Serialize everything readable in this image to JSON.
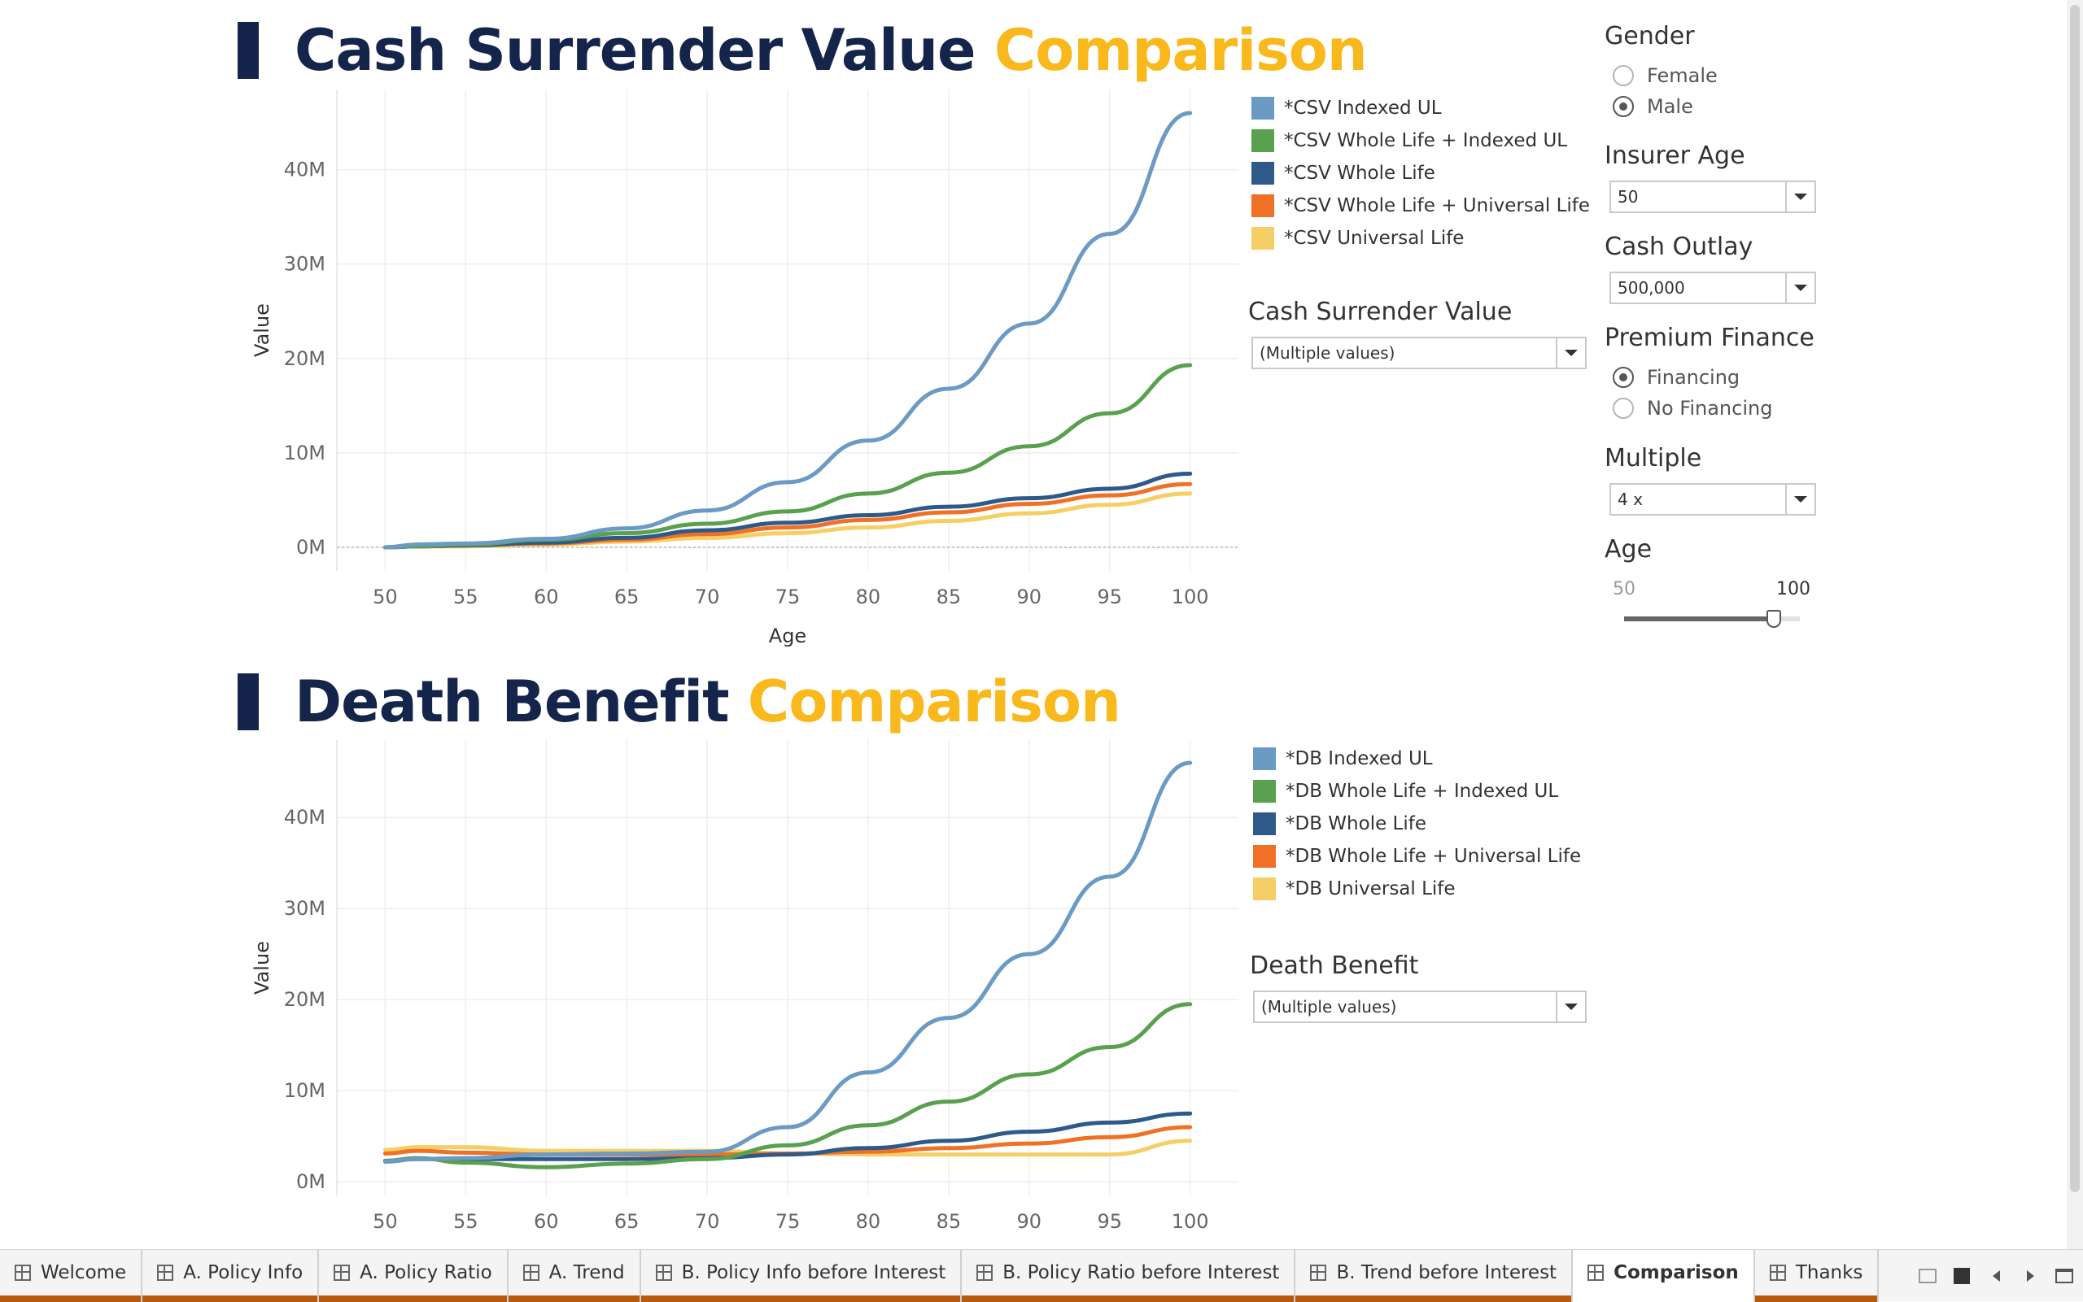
{
  "csv_title": {
    "main": "Cash Surrender Value",
    "accent": "Comparison"
  },
  "db_title": {
    "main": "Death Benefit",
    "accent": "Comparison"
  },
  "colors": {
    "title": "#14244a",
    "accent": "#f9b81b",
    "indexed_ul": "#6b9ac4",
    "whole_life_indexed_ul": "#59a14f",
    "whole_life": "#2e5a8a",
    "whole_life_universal_life": "#f07126",
    "universal_life": "#f5cf65",
    "tab_underline": "#b8590c"
  },
  "csv_legend": [
    {
      "label": "*CSV Indexed UL",
      "color": "#6b9ac4"
    },
    {
      "label": "*CSV Whole Life + Indexed UL",
      "color": "#59a14f"
    },
    {
      "label": "*CSV Whole Life",
      "color": "#2e5a8a"
    },
    {
      "label": "*CSV Whole Life + Universal Life",
      "color": "#f07126"
    },
    {
      "label": "*CSV Universal Life",
      "color": "#f5cf65"
    }
  ],
  "db_legend": [
    {
      "label": "*DB Indexed UL",
      "color": "#6b9ac4"
    },
    {
      "label": "*DB Whole Life + Indexed UL",
      "color": "#59a14f"
    },
    {
      "label": "*DB Whole Life",
      "color": "#2e5a8a"
    },
    {
      "label": "*DB Whole Life + Universal Life",
      "color": "#f07126"
    },
    {
      "label": "*DB Universal Life",
      "color": "#f5cf65"
    }
  ],
  "csv_filter": {
    "title": "Cash Surrender Value",
    "value": "(Multiple values)"
  },
  "db_filter": {
    "title": "Death Benefit",
    "value": "(Multiple values)"
  },
  "gender": {
    "title": "Gender",
    "options": [
      "Female",
      "Male"
    ],
    "selected": "Male"
  },
  "insurer_age": {
    "title": "Insurer Age",
    "value": "50"
  },
  "cash_outlay": {
    "title": "Cash Outlay",
    "value": "500,000"
  },
  "premium_finance": {
    "title": "Premium Finance",
    "options": [
      "Financing",
      "No Financing"
    ],
    "selected": "Financing"
  },
  "multiple": {
    "title": "Multiple",
    "value": "4 x"
  },
  "age_slider": {
    "title": "Age",
    "min_label": "50",
    "max_label": "100",
    "min": 50,
    "max": 100,
    "value": 100
  },
  "tabs": [
    {
      "label": "Welcome",
      "active": false
    },
    {
      "label": "A. Policy Info",
      "active": false
    },
    {
      "label": "A. Policy Ratio",
      "active": false
    },
    {
      "label": "A. Trend",
      "active": false
    },
    {
      "label": "B. Policy Info before Interest",
      "active": false
    },
    {
      "label": "B. Policy Ratio before Interest",
      "active": false
    },
    {
      "label": "B. Trend before Interest",
      "active": false
    },
    {
      "label": "Comparison",
      "active": true
    },
    {
      "label": "Thanks",
      "active": false
    }
  ],
  "chart_data": [
    {
      "type": "line",
      "title": "Cash Surrender Value Comparison",
      "xlabel": "Age",
      "ylabel": "Value",
      "xlim": [
        47,
        103
      ],
      "ylim": [
        -2.5,
        48.5
      ],
      "x_ticks": [
        50,
        55,
        60,
        65,
        70,
        75,
        80,
        85,
        90,
        95,
        100
      ],
      "y_ticks": [
        0,
        10,
        20,
        30,
        40
      ],
      "y_tick_labels": [
        "0M",
        "10M",
        "20M",
        "30M",
        "40M"
      ],
      "zero_line": true,
      "x": [
        50,
        52,
        55,
        60,
        65,
        70,
        75,
        80,
        85,
        90,
        95,
        100
      ],
      "series": [
        {
          "name": "*CSV Indexed UL",
          "color": "#6b9ac4",
          "values": [
            0,
            0.3,
            0.4,
            0.9,
            2.0,
            3.9,
            6.9,
            11.3,
            16.8,
            23.7,
            33.2,
            46.0
          ]
        },
        {
          "name": "*CSV Whole Life + Indexed UL",
          "color": "#59a14f",
          "values": [
            0,
            0.1,
            0.3,
            0.8,
            1.5,
            2.5,
            3.8,
            5.7,
            7.9,
            10.7,
            14.2,
            19.3
          ]
        },
        {
          "name": "*CSV Whole Life",
          "color": "#2e5a8a",
          "values": [
            0,
            0.1,
            0.2,
            0.5,
            1.0,
            1.8,
            2.6,
            3.4,
            4.3,
            5.2,
            6.2,
            7.8
          ]
        },
        {
          "name": "*CSV Whole Life + Universal Life",
          "color": "#f07126",
          "values": [
            0,
            0.1,
            0.2,
            0.4,
            0.8,
            1.4,
            2.1,
            2.9,
            3.7,
            4.6,
            5.5,
            6.7
          ]
        },
        {
          "name": "*CSV Universal Life",
          "color": "#f5cf65",
          "values": [
            0,
            0.1,
            0.1,
            0.3,
            0.6,
            1.0,
            1.5,
            2.1,
            2.8,
            3.6,
            4.5,
            5.7
          ]
        }
      ]
    },
    {
      "type": "line",
      "title": "Death Benefit Comparison",
      "xlabel": "",
      "ylabel": "Value",
      "xlim": [
        47,
        103
      ],
      "ylim": [
        -1.5,
        48.5
      ],
      "x_ticks": [
        50,
        55,
        60,
        65,
        70,
        75,
        80,
        85,
        90,
        95,
        100
      ],
      "y_ticks": [
        0,
        10,
        20,
        30,
        40
      ],
      "y_tick_labels": [
        "0M",
        "10M",
        "20M",
        "30M",
        "40M"
      ],
      "zero_line": false,
      "x": [
        50,
        52,
        55,
        60,
        65,
        70,
        75,
        80,
        85,
        90,
        95,
        100
      ],
      "series": [
        {
          "name": "*DB Indexed UL",
          "color": "#6b9ac4",
          "values": [
            2.2,
            2.5,
            2.6,
            3.0,
            3.1,
            3.3,
            6.0,
            12.0,
            18.0,
            25.0,
            33.5,
            46.0
          ]
        },
        {
          "name": "*DB Whole Life + Indexed UL",
          "color": "#59a14f",
          "values": [
            2.3,
            2.6,
            2.1,
            1.6,
            2.0,
            2.5,
            4.0,
            6.2,
            8.8,
            11.8,
            14.8,
            19.5
          ]
        },
        {
          "name": "*DB Whole Life",
          "color": "#2e5a8a",
          "values": [
            2.3,
            2.5,
            2.5,
            2.5,
            2.5,
            2.6,
            3.0,
            3.7,
            4.5,
            5.5,
            6.5,
            7.5
          ]
        },
        {
          "name": "*DB Whole Life + Universal Life",
          "color": "#f07126",
          "values": [
            3.1,
            3.4,
            3.2,
            3.0,
            3.0,
            3.0,
            3.1,
            3.3,
            3.7,
            4.2,
            4.9,
            6.0
          ]
        },
        {
          "name": "*DB Universal Life",
          "color": "#f5cf65",
          "values": [
            3.5,
            3.8,
            3.8,
            3.4,
            3.4,
            3.4,
            3.1,
            3.0,
            3.0,
            3.0,
            3.0,
            4.5
          ]
        }
      ]
    }
  ]
}
